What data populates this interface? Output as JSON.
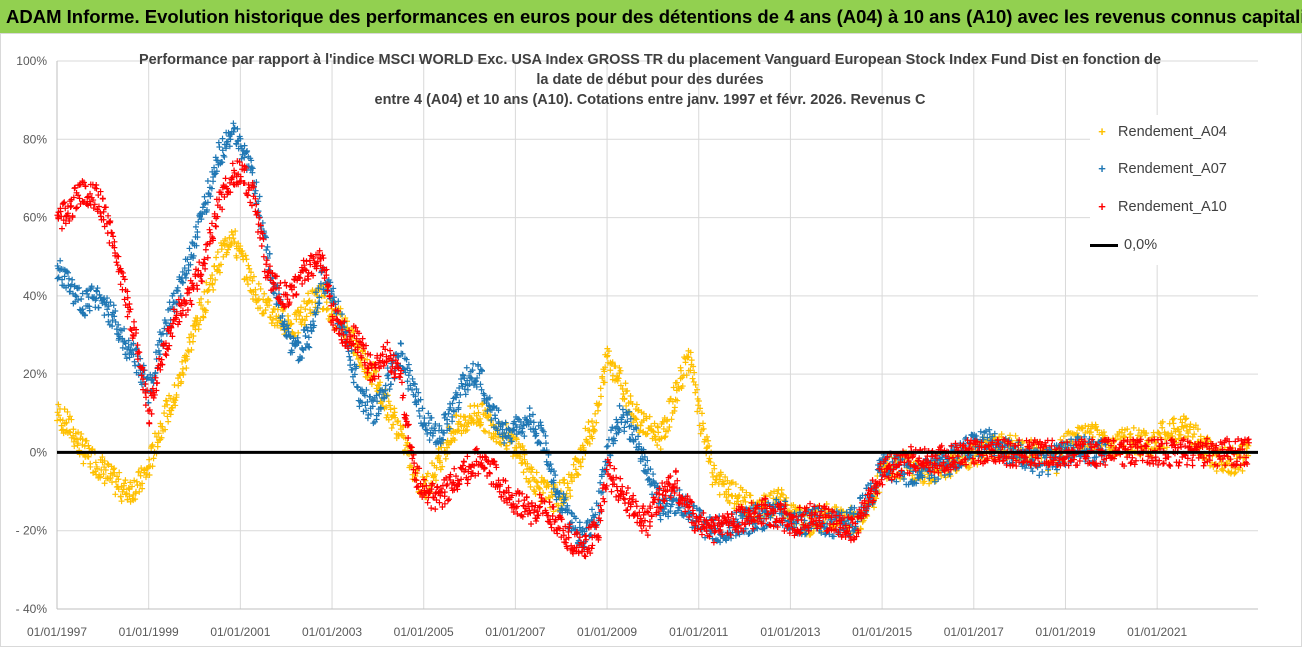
{
  "banner": {
    "text": "ADAM Informe. Evolution historique des performances en euros pour des détentions de 4 ans (A04) à 10 ans (A10) avec les revenus connus capitalisés"
  },
  "chart_data": {
    "type": "scatter",
    "title_lines": [
      "Performance par rapport à l'indice MSCI WORLD Exc. USA Index GROSS TR  du placement Vanguard European Stock Index Fund Dist en fonction de",
      "la date de début pour des durées",
      "entre 4 (A04) et 10 ans (A10). Cotations entre janv. 1997 et févr. 2026. Revenus C"
    ],
    "xlabel": "",
    "ylabel": "",
    "x_tick_labels": [
      "01/01/1997",
      "01/01/1999",
      "01/01/2001",
      "01/01/2003",
      "01/01/2005",
      "01/01/2007",
      "01/01/2009",
      "01/01/2011",
      "01/01/2013",
      "01/01/2015",
      "01/01/2017",
      "01/01/2019",
      "01/01/2021"
    ],
    "x_ticks_years": [
      1997,
      1999,
      2001,
      2003,
      2005,
      2007,
      2009,
      2011,
      2013,
      2015,
      2017,
      2019,
      2021
    ],
    "y_tick_labels": [
      "100%",
      "80%",
      "60%",
      "40%",
      "20%",
      "0%",
      "- 20%",
      "- 40%"
    ],
    "y_ticks": [
      100,
      80,
      60,
      40,
      20,
      0,
      -20,
      -40
    ],
    "xlim": [
      1997.0,
      2023.2
    ],
    "ylim": [
      -40,
      100
    ],
    "legend_position": "right",
    "series": [
      {
        "name": "Rendement_A04",
        "color": "#ffc000",
        "x": [
          1997.0,
          1997.3,
          1997.6,
          1997.9,
          1998.2,
          1998.5,
          1998.8,
          1999.0,
          1999.3,
          1999.6,
          1999.9,
          2000.2,
          2000.5,
          2000.8,
          2001.0,
          2001.3,
          2001.6,
          2001.9,
          2002.2,
          2002.5,
          2002.8,
          2003.0,
          2003.3,
          2003.6,
          2003.9,
          2004.2,
          2004.5,
          2004.8,
          2005.0,
          2005.3,
          2005.6,
          2005.9,
          2006.2,
          2006.5,
          2006.8,
          2007.0,
          2007.3,
          2007.6,
          2007.9,
          2008.2,
          2008.5,
          2008.8,
          2009.0,
          2009.3,
          2009.6,
          2009.9,
          2010.2,
          2010.5,
          2010.8,
          2011.0,
          2011.3,
          2011.6,
          2011.9,
          2012.2,
          2012.5,
          2012.8,
          2013.0,
          2013.3,
          2013.6,
          2013.9,
          2014.2,
          2014.5,
          2014.8,
          2015.0,
          2015.3,
          2015.6,
          2015.9,
          2016.2,
          2016.5,
          2016.8,
          2017.0,
          2017.3,
          2017.6,
          2017.9,
          2018.2,
          2018.5,
          2018.8,
          2019.0,
          2019.3,
          2019.6,
          2019.9,
          2020.2,
          2020.5,
          2020.8,
          2021.0,
          2021.3,
          2021.6,
          2021.9,
          2022.2,
          2022.5,
          2022.8,
          2023.0
        ],
        "y": [
          10,
          6,
          0,
          -3,
          -7,
          -10,
          -8,
          -4,
          8,
          15,
          28,
          38,
          48,
          56,
          50,
          42,
          36,
          34,
          32,
          38,
          40,
          36,
          32,
          25,
          20,
          12,
          5,
          -5,
          -10,
          -3,
          5,
          8,
          10,
          7,
          4,
          2,
          -5,
          -10,
          -12,
          -8,
          2,
          10,
          25,
          18,
          10,
          6,
          4,
          15,
          25,
          10,
          -5,
          -10,
          -12,
          -15,
          -14,
          -12,
          -16,
          -18,
          -17,
          -16,
          -18,
          -17,
          -12,
          -5,
          -4,
          -3,
          -6,
          -4,
          -3,
          -1,
          0,
          1,
          2,
          1,
          0,
          -1,
          -2,
          2,
          3,
          4,
          2,
          3,
          3,
          2,
          4,
          5,
          6,
          3,
          -1,
          -2,
          -2,
          0
        ]
      },
      {
        "name": "Rendement_A07",
        "color": "#1f77b4",
        "x": [
          1997.0,
          1997.3,
          1997.6,
          1997.9,
          1998.2,
          1998.5,
          1998.8,
          1999.0,
          1999.3,
          1999.6,
          1999.9,
          2000.2,
          2000.5,
          2000.8,
          2001.0,
          2001.3,
          2001.6,
          2001.9,
          2002.2,
          2002.5,
          2002.8,
          2003.0,
          2003.3,
          2003.6,
          2003.9,
          2004.2,
          2004.5,
          2004.8,
          2005.0,
          2005.3,
          2005.6,
          2005.9,
          2006.2,
          2006.5,
          2006.8,
          2007.0,
          2007.3,
          2007.6,
          2007.9,
          2008.2,
          2008.5,
          2008.8,
          2009.0,
          2009.3,
          2009.6,
          2009.9,
          2010.2,
          2010.5,
          2010.8,
          2011.0,
          2011.3,
          2011.6,
          2011.9,
          2012.2,
          2012.5,
          2012.8,
          2013.0,
          2013.3,
          2013.6,
          2013.9,
          2014.2,
          2014.5,
          2014.8,
          2015.0,
          2015.3,
          2015.6,
          2015.9,
          2016.2,
          2016.5,
          2016.8,
          2017.0,
          2017.3,
          2017.6,
          2017.9,
          2018.2,
          2018.5,
          2018.8,
          2019.0,
          2019.3,
          2019.6,
          2019.9
        ],
        "y": [
          47,
          42,
          38,
          40,
          35,
          28,
          22,
          15,
          30,
          40,
          50,
          62,
          75,
          82,
          78,
          70,
          50,
          35,
          25,
          30,
          45,
          40,
          30,
          15,
          10,
          18,
          25,
          15,
          8,
          4,
          10,
          18,
          20,
          10,
          5,
          6,
          8,
          4,
          -10,
          -18,
          -22,
          -15,
          0,
          10,
          5,
          -5,
          -15,
          -12,
          -15,
          -18,
          -20,
          -19,
          -18,
          -17,
          -16,
          -15,
          -17,
          -18,
          -17,
          -18,
          -19,
          -15,
          -10,
          -3,
          -4,
          -6,
          -5,
          -4,
          -2,
          0,
          2,
          3,
          1,
          0,
          -2,
          -3,
          -1,
          0,
          1,
          0,
          0
        ]
      },
      {
        "name": "Rendement_A10",
        "color": "#ff0000",
        "x": [
          1997.0,
          1997.3,
          1997.6,
          1997.9,
          1998.2,
          1998.5,
          1998.8,
          1999.0,
          1999.3,
          1999.6,
          1999.9,
          2000.2,
          2000.5,
          2000.8,
          2001.0,
          2001.3,
          2001.6,
          2001.9,
          2002.2,
          2002.5,
          2002.8,
          2003.0,
          2003.3,
          2003.6,
          2003.9,
          2004.2,
          2004.5,
          2004.8,
          2005.0,
          2005.3,
          2005.6,
          2005.9,
          2006.2,
          2006.5,
          2006.8,
          2007.0,
          2007.3,
          2007.6,
          2007.9,
          2008.2,
          2008.5,
          2008.8,
          2009.0,
          2009.3,
          2009.6,
          2009.9,
          2010.2,
          2010.5,
          2010.8,
          2011.0,
          2011.3,
          2011.6,
          2011.9,
          2012.2,
          2012.5,
          2012.8,
          2013.0,
          2013.3,
          2013.6,
          2013.9,
          2014.2,
          2014.5,
          2014.8,
          2015.0,
          2015.3,
          2015.6,
          2015.9,
          2016.2,
          2016.5,
          2016.8,
          2017.0,
          2017.3,
          2017.6,
          2017.9,
          2018.2,
          2018.5,
          2018.8,
          2019.0,
          2019.3,
          2019.6,
          2019.9,
          2020.2,
          2020.5,
          2020.8,
          2021.0,
          2021.3,
          2021.6,
          2021.9,
          2022.2,
          2022.5,
          2022.8,
          2023.0
        ],
        "y": [
          58,
          63,
          67,
          65,
          55,
          40,
          25,
          10,
          25,
          35,
          40,
          48,
          62,
          70,
          72,
          65,
          45,
          40,
          42,
          48,
          50,
          35,
          30,
          28,
          20,
          25,
          18,
          -5,
          -10,
          -12,
          -8,
          -5,
          -2,
          -5,
          -10,
          -13,
          -15,
          -14,
          -18,
          -22,
          -24,
          -20,
          -5,
          -10,
          -15,
          -18,
          -10,
          -8,
          -15,
          -18,
          -20,
          -18,
          -17,
          -16,
          -15,
          -16,
          -18,
          -17,
          -16,
          -18,
          -20,
          -18,
          -10,
          -5,
          -3,
          -2,
          -1,
          -2,
          -1,
          0,
          0,
          0,
          0,
          0,
          0,
          0,
          0,
          0,
          0,
          0,
          0,
          0,
          0,
          0,
          0,
          0,
          0,
          0,
          0,
          0,
          0,
          0
        ]
      },
      {
        "name": "0,0%",
        "color": "#000000",
        "x": [
          1997.0,
          2023.2
        ],
        "y": [
          0,
          0
        ]
      }
    ]
  }
}
